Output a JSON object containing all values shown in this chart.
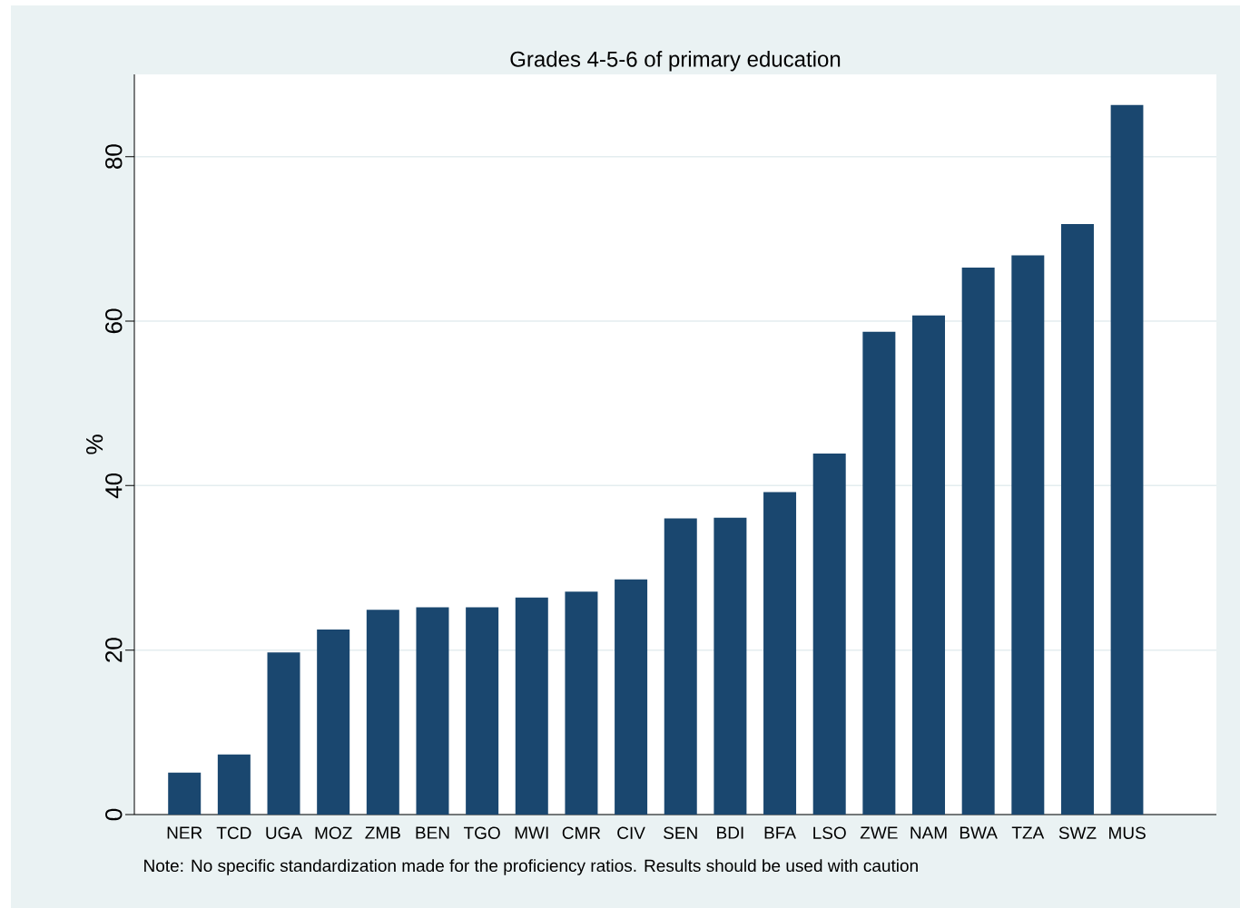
{
  "chart_data": {
    "type": "bar",
    "title": "Grades 4-5-6 of primary education",
    "ylabel": "%",
    "categories": [
      "NER",
      "TCD",
      "UGA",
      "MOZ",
      "ZMB",
      "BEN",
      "TGO",
      "MWI",
      "CMR",
      "CIV",
      "SEN",
      "BDI",
      "BFA",
      "LSO",
      "ZWE",
      "NAM",
      "BWA",
      "TZA",
      "SWZ",
      "MUS"
    ],
    "values": [
      5.1,
      7.3,
      19.7,
      22.5,
      24.9,
      25.2,
      25.2,
      26.4,
      27.1,
      28.6,
      36.0,
      36.1,
      39.2,
      43.9,
      58.7,
      60.7,
      66.5,
      68.0,
      71.8,
      86.3
    ],
    "color": "#1a476f",
    "ylim": [
      0,
      90
    ],
    "yticks": [
      0,
      20,
      40,
      60,
      80
    ],
    "grid": "y",
    "annotations": [
      "Note: No specific standardization made for the proficiency ratios. Results should be used with caution"
    ]
  }
}
